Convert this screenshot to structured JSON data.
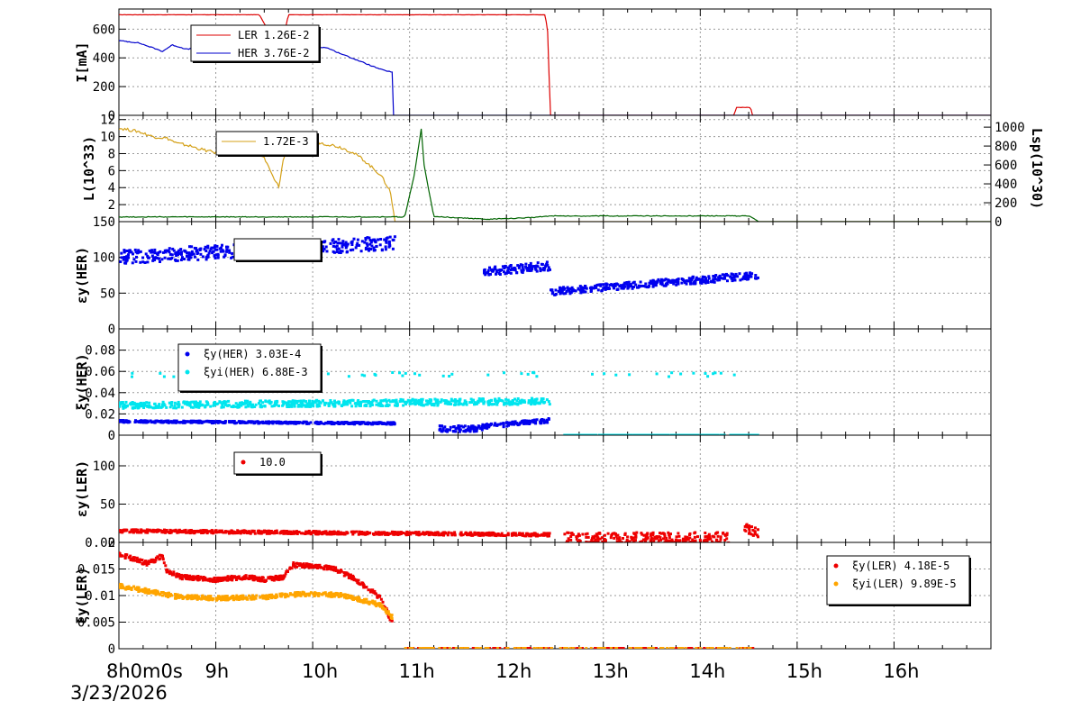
{
  "date_label": "3/23/2026",
  "time_axis": {
    "start_label": "8h0m0s",
    "tick_labels": [
      "8h0m0s",
      "9h",
      "10h",
      "11h",
      "12h",
      "13h",
      "14h",
      "15h",
      "16h"
    ],
    "range_hours": [
      8,
      17
    ],
    "grid": true
  },
  "colors": {
    "LER": "#dd0000",
    "HER": "#0000cc",
    "lum": "#d4a017",
    "lsp": "#006400",
    "xi_her": "#0000ee",
    "xi_yi_her": "#00e5ee",
    "eps_ler": "#ee0000",
    "xi_ler": "#ee0000",
    "xi_yi_ler": "#ffa500"
  },
  "chart_data": [
    {
      "type": "line",
      "ylabel": "I[mA]",
      "ylim": [
        0,
        740
      ],
      "yticks": [
        "0",
        "200",
        "400",
        "600"
      ],
      "legend": [
        "LER  1.26E-2",
        "HER  3.76E-2"
      ],
      "series": [
        {
          "name": "LER",
          "x": [
            8.0,
            9.45,
            9.55,
            9.65,
            9.75,
            12.4,
            12.43,
            12.45,
            14.35,
            14.37,
            14.52,
            14.54,
            17.0
          ],
          "values": [
            700,
            700,
            580,
            390,
            700,
            700,
            560,
            0,
            0,
            55,
            55,
            0,
            0
          ]
        },
        {
          "name": "HER",
          "x": [
            8.0,
            8.2,
            8.35,
            8.45,
            8.55,
            8.7,
            8.85,
            9.0,
            9.2,
            9.3,
            9.45,
            9.55,
            9.7,
            9.9,
            10.0,
            10.15,
            10.25,
            10.4,
            10.55,
            10.7,
            10.82,
            10.83,
            17.0
          ],
          "values": [
            520,
            505,
            470,
            445,
            490,
            460,
            470,
            455,
            440,
            470,
            475,
            470,
            470,
            475,
            480,
            470,
            440,
            400,
            360,
            320,
            300,
            0,
            0
          ]
        }
      ]
    },
    {
      "type": "line",
      "ylabel": "L(10^33)",
      "y2label": "Lsp(10^30)",
      "ylim": [
        0,
        12.5
      ],
      "yticks": [
        "2",
        "4",
        "6",
        "8",
        "10",
        "12"
      ],
      "y2lim": [
        0,
        1125
      ],
      "y2ticks": [
        "0",
        "200",
        "400",
        "600",
        "800",
        "1000"
      ],
      "legend": [
        "1.72E-3"
      ],
      "series": [
        {
          "name": "L",
          "x": [
            8.0,
            8.2,
            8.35,
            8.5,
            8.6,
            8.7,
            8.85,
            9.0,
            9.2,
            9.4,
            9.5,
            9.6,
            9.65,
            9.7,
            9.8,
            9.9,
            10.0,
            10.1,
            10.2,
            10.3,
            10.4,
            10.5,
            10.6,
            10.7,
            10.8,
            10.85,
            17.0
          ],
          "values": [
            11.0,
            10.6,
            10.0,
            9.8,
            9.2,
            9.0,
            8.5,
            8.1,
            8.0,
            8.5,
            7.5,
            5.0,
            4.1,
            7.5,
            9.4,
            9.3,
            9.5,
            9.2,
            9.0,
            8.7,
            8.2,
            7.5,
            6.5,
            5.5,
            3.6,
            0,
            0
          ]
        },
        {
          "name": "Lsp",
          "x": [
            8.0,
            10.85,
            10.95,
            11.05,
            11.12,
            11.15,
            11.25,
            11.35,
            11.8,
            12.2,
            12.45,
            14.5,
            14.55,
            14.6,
            17.0
          ],
          "values": [
            50,
            50,
            50,
            500,
            980,
            600,
            50,
            50,
            25,
            40,
            60,
            60,
            40,
            0,
            0
          ]
        }
      ]
    },
    {
      "type": "scatter",
      "ylabel": "εy(HER)",
      "ylim": [
        0,
        150
      ],
      "yticks": [
        "0",
        "50",
        "100",
        "150"
      ],
      "legend": [
        ""
      ],
      "series": [
        {
          "name": "εy(HER)",
          "segments": [
            {
              "x": [
                8.0,
                10.85
              ],
              "values": [
                100,
                120
              ],
              "spread": 10
            },
            {
              "x": [
                11.75,
                12.45
              ],
              "values": [
                80,
                88
              ],
              "spread": 6
            },
            {
              "x": [
                12.45,
                14.6
              ],
              "values": [
                52,
                75
              ],
              "spread": 5
            }
          ]
        }
      ]
    },
    {
      "type": "scatter",
      "ylabel": "ξy(HER)",
      "ylim": [
        0,
        0.1
      ],
      "yticks": [
        "0",
        "0.02",
        "0.04",
        "0.06",
        "0.08"
      ],
      "legend": [
        "ξy(HER)  3.03E-4",
        "ξyi(HER)  6.88E-3"
      ],
      "series": [
        {
          "name": "ξy(HER)",
          "segments": [
            {
              "x": [
                8.0,
                10.85
              ],
              "values": [
                0.013,
                0.011
              ],
              "spread": 0.001
            },
            {
              "x": [
                11.3,
                11.75
              ],
              "values": [
                0.006,
                0.006
              ],
              "spread": 0.003
            },
            {
              "x": [
                11.75,
                12.45
              ],
              "values": [
                0.008,
                0.014
              ],
              "spread": 0.002
            }
          ]
        },
        {
          "name": "ξyi(HER)",
          "segments": [
            {
              "x": [
                8.0,
                12.45
              ],
              "values": [
                0.028,
                0.032
              ],
              "spread": 0.003
            },
            {
              "x": [
                12.6,
                14.6
              ],
              "values": [
                0.0,
                0.0
              ],
              "spread": 0.0
            }
          ]
        }
      ]
    },
    {
      "type": "scatter",
      "ylabel": "εy(LER)",
      "ylim": [
        0,
        140
      ],
      "yticks": [
        "0",
        "50",
        "100"
      ],
      "legend": [
        "10.0"
      ],
      "series": [
        {
          "name": "εy(LER)",
          "segments": [
            {
              "x": [
                8.0,
                12.45
              ],
              "values": [
                15,
                10
              ],
              "spread": 2
            },
            {
              "x": [
                12.6,
                14.3
              ],
              "values": [
                5,
                5
              ],
              "spread": 8
            },
            {
              "x": [
                14.45,
                14.6
              ],
              "values": [
                20,
                12
              ],
              "spread": 6
            }
          ]
        }
      ]
    },
    {
      "type": "scatter",
      "ylabel": "ξy(LER)",
      "ylim": [
        0,
        0.02
      ],
      "yticks": [
        "0",
        "0.005",
        "0.01",
        "0.015",
        "0.02"
      ],
      "legend": [
        "ξy(LER)  4.18E-5",
        "ξyi(LER)  9.89E-5"
      ],
      "series": [
        {
          "name": "ξy(LER)",
          "x": [
            8.0,
            8.3,
            8.45,
            8.5,
            8.65,
            9.0,
            9.3,
            9.5,
            9.7,
            9.8,
            10.0,
            10.2,
            10.4,
            10.6,
            10.7,
            10.82
          ],
          "values": [
            0.0178,
            0.016,
            0.0175,
            0.0145,
            0.0135,
            0.013,
            0.0135,
            0.013,
            0.0135,
            0.0158,
            0.0155,
            0.0152,
            0.0135,
            0.011,
            0.0095,
            0.005
          ]
        },
        {
          "name": "ξyi(LER)",
          "x": [
            8.0,
            8.4,
            8.6,
            9.0,
            9.5,
            9.8,
            10.0,
            10.3,
            10.5,
            10.7,
            10.82
          ],
          "values": [
            0.0118,
            0.0105,
            0.0098,
            0.0095,
            0.0097,
            0.0102,
            0.0103,
            0.0101,
            0.0092,
            0.0082,
            0.006
          ]
        }
      ]
    }
  ]
}
